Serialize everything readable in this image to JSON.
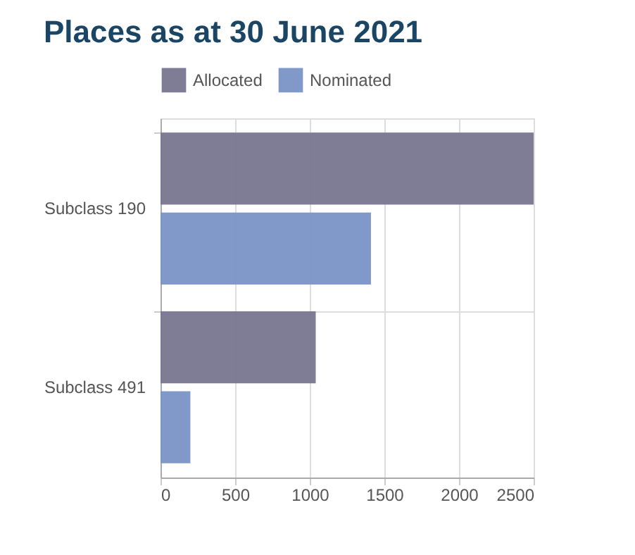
{
  "chart_data": {
    "type": "bar",
    "orientation": "horizontal",
    "title": "Places as at 30 June 2021",
    "categories": [
      "Subclass 190",
      "Subclass 491"
    ],
    "series": [
      {
        "name": "Allocated",
        "color": "#787590",
        "values": [
          2500,
          1040
        ]
      },
      {
        "name": "Nominated",
        "color": "#7993c6",
        "values": [
          1410,
          200
        ]
      }
    ],
    "xlim": [
      0,
      2500
    ],
    "xticks": [
      0,
      500,
      1000,
      1500,
      2000,
      2500
    ],
    "grid": true,
    "legend": "top"
  }
}
